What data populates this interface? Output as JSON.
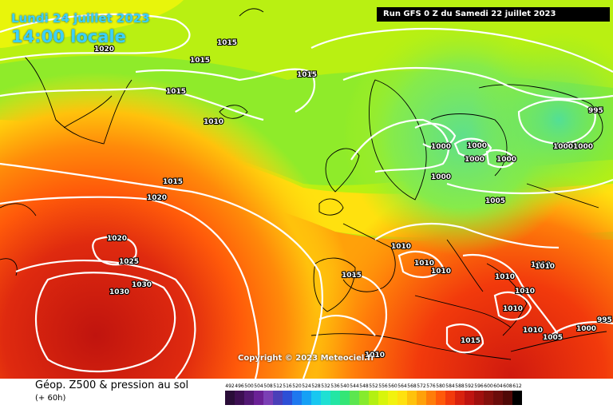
{
  "header": {
    "date_title": "Lundi 24 juillet 2023",
    "time_title": "14:00 locale",
    "run_info": "Run GFS 0 Z du Samedi 22 juillet 2023"
  },
  "copyright": "Copyright © 2023 Meteociel.fr",
  "footer": {
    "title": "Géop. Z500 & pression au sol",
    "subtitle": "(+ 60h)"
  },
  "color_scale": {
    "values": [
      "492",
      "496",
      "500",
      "504",
      "508",
      "512",
      "516",
      "520",
      "524",
      "528",
      "532",
      "536",
      "540",
      "544",
      "548",
      "552",
      "556",
      "560",
      "564",
      "568",
      "572",
      "576",
      "580",
      "584",
      "588",
      "592",
      "596",
      "600",
      "604",
      "608",
      "612"
    ],
    "colors": [
      "#2a0d38",
      "#3d0f52",
      "#521873",
      "#6b2196",
      "#7b3fb5",
      "#4a3fb8",
      "#2d4fd6",
      "#1e78ef",
      "#16a0f5",
      "#18c7f0",
      "#1fe0d3",
      "#23e6a4",
      "#34e676",
      "#5ce64f",
      "#86eb2d",
      "#b3f012",
      "#d8f50b",
      "#f2f20f",
      "#ffe10f",
      "#ffc20c",
      "#ffa10a",
      "#ff7d0a",
      "#ff5a0a",
      "#f23a0c",
      "#d9220e",
      "#bf1410",
      "#a0100e",
      "#84100c",
      "#6b0c0a",
      "#500806",
      "#000000"
    ]
  },
  "isobars": [
    {
      "label": "1020"
    },
    {
      "label": "1015"
    },
    {
      "label": "1015"
    },
    {
      "label": "1015"
    },
    {
      "label": "1015"
    },
    {
      "label": "1010"
    },
    {
      "label": "1015"
    },
    {
      "label": "1020"
    },
    {
      "label": "1020"
    },
    {
      "label": "1025"
    },
    {
      "label": "1030"
    },
    {
      "label": "1030"
    },
    {
      "label": "1000"
    },
    {
      "label": "1000"
    },
    {
      "label": "1000"
    },
    {
      "label": "1000"
    },
    {
      "label": "1000"
    },
    {
      "label": "1000"
    },
    {
      "label": "995"
    },
    {
      "label": "1000"
    },
    {
      "label": "1005"
    },
    {
      "label": "1010"
    },
    {
      "label": "1010"
    },
    {
      "label": "1010"
    },
    {
      "label": "1010"
    },
    {
      "label": "1010"
    },
    {
      "label": "1010"
    },
    {
      "label": "1010"
    },
    {
      "label": "1015"
    },
    {
      "label": "1010"
    },
    {
      "label": "1010"
    },
    {
      "label": "1005"
    },
    {
      "label": "1000"
    },
    {
      "label": "995"
    },
    {
      "label": "1015"
    },
    {
      "label": "1010"
    }
  ]
}
